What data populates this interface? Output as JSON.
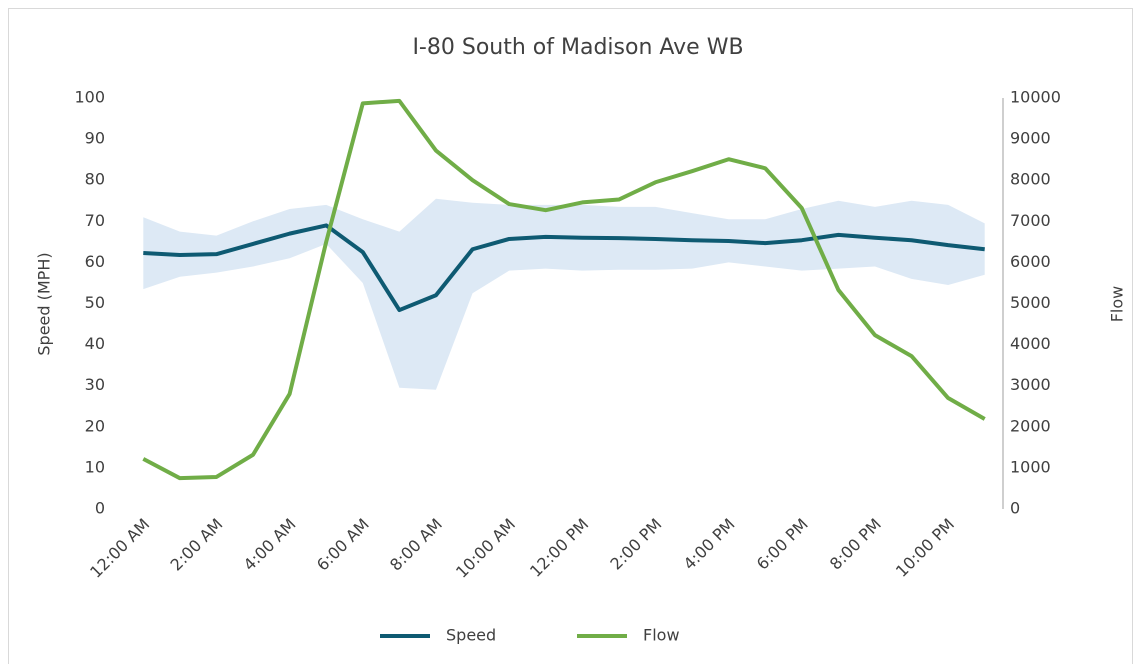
{
  "chart_data": {
    "type": "line",
    "title": "I-80 South of Madison Ave WB",
    "y_label": "Speed (MPH)",
    "y2_label": "Flow",
    "categories": [
      "12:00 AM",
      null,
      "2:00 AM",
      null,
      "4:00 AM",
      null,
      "6:00 AM",
      null,
      "8:00 AM",
      null,
      "10:00 AM",
      null,
      "12:00 PM",
      null,
      "2:00 PM",
      null,
      "4:00 PM",
      null,
      "6:00 PM",
      null,
      "8:00 PM",
      null,
      "10:00 PM",
      null
    ],
    "series": [
      {
        "name": "Speed",
        "color": "#0e5a72",
        "values": [
          62.3,
          61.8,
          62,
          64.5,
          67,
          69,
          62.5,
          48.4,
          52,
          63.2,
          65.7,
          66.2,
          66,
          65.9,
          65.7,
          65.4,
          65.2,
          64.7,
          65.4,
          66.7,
          66,
          65.4,
          64.2,
          63.2
        ]
      },
      {
        "name": "Flow",
        "color": "#70ad47",
        "axis": "y2",
        "values": [
          1220,
          750,
          780,
          1320,
          2800,
          6500,
          9870,
          9930,
          8720,
          8000,
          7420,
          7270,
          7460,
          7530,
          7950,
          8220,
          8510,
          8290,
          7320,
          5330,
          4230,
          3720,
          2700,
          2190
        ]
      }
    ],
    "band": {
      "color": "#dde9f5",
      "upper": [
        71,
        67.5,
        66.5,
        70,
        73,
        74,
        70.5,
        67.5,
        75.5,
        74.5,
        74,
        74,
        74,
        73.5,
        73.5,
        72,
        70.5,
        70.5,
        73,
        75,
        73.5,
        75,
        74,
        69.5
      ],
      "lower": [
        53.5,
        56.5,
        57.5,
        59,
        61,
        64.5,
        55,
        29.5,
        29,
        52.5,
        58,
        58.5,
        58,
        58.2,
        58.2,
        58.5,
        60,
        59,
        58,
        58.5,
        59,
        56,
        54.5,
        57
      ]
    },
    "ylim": [
      0,
      100
    ],
    "yticks": [
      0,
      10,
      20,
      30,
      40,
      50,
      60,
      70,
      80,
      90,
      100
    ],
    "y2lim": [
      0,
      10000
    ],
    "y2ticks": [
      0,
      1000,
      2000,
      3000,
      4000,
      5000,
      6000,
      7000,
      8000,
      9000,
      10000
    ],
    "legend": "bottom"
  }
}
